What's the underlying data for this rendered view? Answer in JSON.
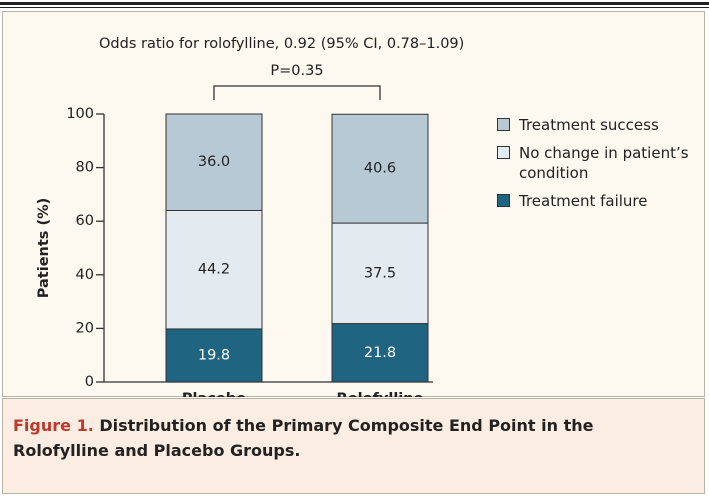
{
  "chart_data": {
    "type": "stacked-bar",
    "annotations": [
      "Odds ratio for rolofylline, 0.92 (95% CI, 0.78–1.09)",
      "P=0.35"
    ],
    "ylabel": "Patients (%)",
    "categories": [
      "Placebo",
      "Rolofylline"
    ],
    "series": [
      {
        "name": "Treatment success",
        "color": "#b8c9d6",
        "values": [
          36.0,
          40.6
        ],
        "value_labels": [
          "36.0",
          "40.6"
        ]
      },
      {
        "name": "No change in patient’s condition",
        "color": "#e3ebf1",
        "values": [
          44.2,
          37.5
        ],
        "value_labels": [
          "44.2",
          "37.5"
        ]
      },
      {
        "name": "Treatment failure",
        "color": "#1f6582",
        "values": [
          19.8,
          21.8
        ],
        "value_labels": [
          "19.8",
          "21.8"
        ]
      }
    ],
    "ylim": [
      0,
      100
    ],
    "yticks": [
      0,
      20,
      40,
      60,
      80,
      100
    ]
  },
  "caption": {
    "label": "Figure 1.",
    "text": "Distribution of the Primary Composite End Point in the Rolofylline and Placebo Groups."
  }
}
